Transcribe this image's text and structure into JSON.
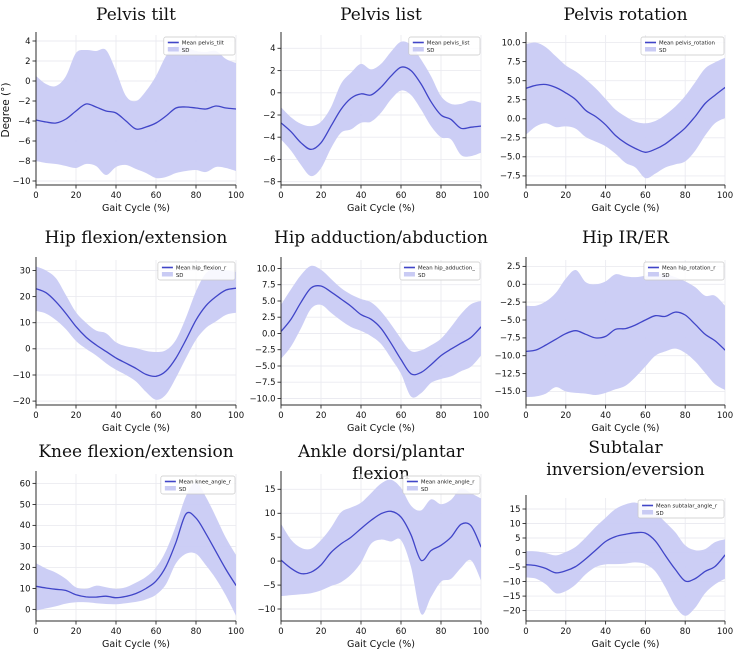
{
  "figure": {
    "background": "#ffffff",
    "line_color": "#4045c8",
    "band_color": "#c9cbf4",
    "grid_color": "#ebebf1",
    "axis_color": "#2b2b2b",
    "legend_sd_label": "SD"
  },
  "chart_data": [
    {
      "type": "line",
      "title_lines": [
        "Pelvis  tilt"
      ],
      "legend": [
        "Mean pelvis_tilt",
        "SD"
      ],
      "xlabel": "Gait Cycle (%)",
      "ylabel": "Degree (°)",
      "grid": true,
      "legend_position": "upper right",
      "x": [
        0,
        5,
        10,
        15,
        20,
        25,
        30,
        35,
        40,
        45,
        50,
        55,
        60,
        65,
        70,
        75,
        80,
        85,
        90,
        95,
        100
      ],
      "mean": [
        -3.9,
        -4.1,
        -4.2,
        -3.8,
        -3.0,
        -2.3,
        -2.6,
        -3.0,
        -3.2,
        -4.0,
        -4.8,
        -4.6,
        -4.2,
        -3.5,
        -2.7,
        -2.6,
        -2.7,
        -2.8,
        -2.5,
        -2.7,
        -2.8
      ],
      "sd_upper": [
        0.5,
        -0.3,
        -0.5,
        0.5,
        2.8,
        3.1,
        3.0,
        3.1,
        1.0,
        -1.5,
        -2.0,
        -1.0,
        0.5,
        2.5,
        3.6,
        3.4,
        3.0,
        2.9,
        3.0,
        2.2,
        1.8
      ],
      "sd_lower": [
        -8.0,
        -8.2,
        -8.3,
        -8.5,
        -8.7,
        -8.3,
        -8.5,
        -9.4,
        -8.6,
        -8.4,
        -8.8,
        -9.2,
        -9.7,
        -9.6,
        -9.2,
        -9.0,
        -8.9,
        -9.1,
        -8.6,
        -8.7,
        -9.0
      ],
      "ylim": [
        -10.4,
        4.6
      ],
      "yticks": [
        4,
        2,
        0,
        -2,
        -4,
        -6,
        -8,
        -10
      ],
      "ytick_labels": [
        "4",
        "2",
        "0",
        "−2",
        "−4",
        "−6",
        "−8",
        "−10"
      ],
      "xticks": [
        0,
        20,
        40,
        60,
        80,
        100
      ],
      "xtick_labels": [
        "0",
        "20",
        "40",
        "60",
        "80",
        "100"
      ]
    },
    {
      "type": "line",
      "title_lines": [
        "Pelvis list"
      ],
      "legend": [
        "Mean pelvis_list",
        "SD"
      ],
      "xlabel": "Gait Cycle (%)",
      "ylabel": "",
      "grid": true,
      "legend_position": "upper right",
      "x": [
        0,
        5,
        10,
        15,
        20,
        25,
        30,
        35,
        40,
        45,
        50,
        55,
        60,
        65,
        70,
        75,
        80,
        85,
        90,
        95,
        100
      ],
      "mean": [
        -2.7,
        -3.5,
        -4.5,
        -5.1,
        -4.5,
        -3.0,
        -1.5,
        -0.5,
        -0.1,
        -0.2,
        0.5,
        1.5,
        2.3,
        2.0,
        0.8,
        -0.8,
        -2.0,
        -2.4,
        -3.2,
        -3.1,
        -3.0
      ],
      "sd_upper": [
        -1.3,
        -2.2,
        -2.8,
        -3.0,
        -2.6,
        -1.3,
        0.8,
        1.8,
        2.6,
        2.1,
        2.6,
        3.7,
        4.6,
        4.3,
        3.0,
        1.5,
        -0.3,
        -1.0,
        -1.0,
        -0.7,
        -0.9
      ],
      "sd_lower": [
        -4.2,
        -5.2,
        -6.5,
        -7.5,
        -6.8,
        -5.0,
        -3.6,
        -3.3,
        -2.7,
        -2.6,
        -1.8,
        -0.6,
        0.2,
        -0.2,
        -1.5,
        -3.0,
        -4.0,
        -4.2,
        -5.6,
        -5.7,
        -5.4
      ],
      "ylim": [
        -8.3,
        5.2
      ],
      "yticks": [
        4,
        2,
        0,
        -2,
        -4,
        -6,
        -8
      ],
      "ytick_labels": [
        "4",
        "2",
        "0",
        "−2",
        "−4",
        "−6",
        "−8"
      ],
      "xticks": [
        0,
        20,
        40,
        60,
        80,
        100
      ],
      "xtick_labels": [
        "0",
        "20",
        "40",
        "60",
        "80",
        "100"
      ]
    },
    {
      "type": "line",
      "title_lines": [
        "Pelvis rotation"
      ],
      "legend": [
        "Mean pelvis_rotation",
        "SD"
      ],
      "xlabel": "Gait Cycle (%)",
      "ylabel": "",
      "grid": true,
      "legend_position": "upper right",
      "x": [
        0,
        5,
        10,
        15,
        20,
        25,
        30,
        35,
        40,
        45,
        50,
        55,
        60,
        65,
        70,
        75,
        80,
        85,
        90,
        95,
        100
      ],
      "mean": [
        4.0,
        4.4,
        4.5,
        4.1,
        3.4,
        2.5,
        1.1,
        0.3,
        -0.8,
        -2.2,
        -3.2,
        -3.9,
        -4.4,
        -4.0,
        -3.3,
        -2.3,
        -1.2,
        0.3,
        2.0,
        3.1,
        4.1
      ],
      "sd_upper": [
        9.8,
        10.0,
        9.4,
        8.2,
        7.0,
        6.2,
        5.2,
        4.0,
        2.6,
        1.2,
        0.3,
        -0.4,
        -0.6,
        -0.3,
        0.5,
        1.6,
        3.0,
        4.8,
        6.6,
        7.4,
        8.0
      ],
      "sd_lower": [
        -2.1,
        -1.0,
        -0.6,
        -1.1,
        -1.0,
        -1.3,
        -2.4,
        -3.0,
        -3.6,
        -4.6,
        -5.8,
        -6.4,
        -7.8,
        -7.2,
        -6.4,
        -6.0,
        -5.6,
        -4.2,
        -2.2,
        -0.6,
        0.1
      ],
      "ylim": [
        -8.7,
        11.0
      ],
      "yticks": [
        10,
        7.5,
        5,
        2.5,
        0,
        -2.5,
        -5,
        -7.5
      ],
      "ytick_labels": [
        "10.0",
        "7.5",
        "5.0",
        "2.5",
        "0.0",
        "−2.5",
        "−5.0",
        "−7.5"
      ],
      "xticks": [
        0,
        20,
        40,
        60,
        80,
        100
      ],
      "xtick_labels": [
        "0",
        "20",
        "40",
        "60",
        "80",
        "100"
      ]
    },
    {
      "type": "line",
      "title_lines": [
        "Hip flexion/extension"
      ],
      "legend": [
        "Mean hip_flexion_r",
        "SD"
      ],
      "xlabel": "Gait Cycle (%)",
      "ylabel": "",
      "grid": true,
      "legend_position": "upper right",
      "x": [
        0,
        5,
        10,
        15,
        20,
        25,
        30,
        35,
        40,
        45,
        50,
        55,
        60,
        65,
        70,
        75,
        80,
        85,
        90,
        95,
        100
      ],
      "mean": [
        23,
        21.5,
        18,
        13.5,
        8.5,
        4.5,
        1.5,
        -1,
        -3.5,
        -5.5,
        -7.5,
        -9.8,
        -10.5,
        -8.5,
        -3.5,
        3.5,
        11,
        16.5,
        20,
        22.5,
        23.2
      ],
      "sd_upper": [
        31.5,
        30,
        27,
        20.5,
        14,
        10,
        7,
        6,
        2.5,
        1.0,
        0.3,
        -0.8,
        -1.2,
        -0.5,
        3.5,
        12,
        22,
        29,
        30.5,
        30,
        29.5
      ],
      "sd_lower": [
        14.5,
        13.5,
        11,
        7.5,
        3,
        0,
        -2.5,
        -5.5,
        -8,
        -10,
        -12.5,
        -16.5,
        -19.5,
        -17.5,
        -11,
        -3.5,
        3.5,
        8,
        10.5,
        13,
        13.8
      ],
      "ylim": [
        -21.5,
        34
      ],
      "yticks": [
        30,
        20,
        10,
        0,
        -10,
        -20
      ],
      "ytick_labels": [
        "30",
        "20",
        "10",
        "0",
        "−10",
        "−20"
      ],
      "xticks": [
        0,
        20,
        40,
        60,
        80,
        100
      ],
      "xtick_labels": [
        "0",
        "20",
        "40",
        "60",
        "80",
        "100"
      ]
    },
    {
      "type": "line",
      "title_lines": [
        "Hip adduction/abduction"
      ],
      "legend": [
        "Mean hip_adduction_",
        "SD"
      ],
      "xlabel": "Gait Cycle (%)",
      "ylabel": "",
      "grid": true,
      "legend_position": "upper right",
      "x": [
        0,
        5,
        10,
        15,
        20,
        25,
        30,
        35,
        40,
        45,
        50,
        55,
        60,
        65,
        70,
        75,
        80,
        85,
        90,
        95,
        100
      ],
      "mean": [
        0.3,
        2.2,
        4.8,
        7.0,
        7.3,
        6.4,
        5.3,
        4.2,
        2.9,
        2.2,
        0.8,
        -1.5,
        -4.0,
        -6.2,
        -6.0,
        -4.8,
        -3.4,
        -2.4,
        -1.5,
        -0.6,
        1.0
      ],
      "sd_upper": [
        4.4,
        6.8,
        9.0,
        10.4,
        9.8,
        8.4,
        7.0,
        6.0,
        5.3,
        4.8,
        3.4,
        1.4,
        -0.8,
        -2.7,
        -2.6,
        -1.8,
        -0.8,
        1.0,
        3.0,
        4.5,
        5.0
      ],
      "sd_lower": [
        -3.9,
        -2.0,
        0.8,
        3.8,
        4.4,
        3.2,
        2.0,
        1.0,
        0.4,
        -0.4,
        -1.6,
        -3.8,
        -6.2,
        -9.7,
        -9.2,
        -7.6,
        -7.0,
        -6.6,
        -5.8,
        -5.1,
        -3.4
      ],
      "ylim": [
        -11.0,
        11.3
      ],
      "yticks": [
        10,
        7.5,
        5,
        2.5,
        0,
        -2.5,
        -5,
        -7.5,
        -10
      ],
      "ytick_labels": [
        "10.0",
        "7.5",
        "5.0",
        "2.5",
        "0.0",
        "−2.5",
        "−5.0",
        "−7.5",
        "−10.0"
      ],
      "xticks": [
        0,
        20,
        40,
        60,
        80,
        100
      ],
      "xtick_labels": [
        "0",
        "20",
        "40",
        "60",
        "80",
        "100"
      ]
    },
    {
      "type": "line",
      "title_lines": [
        "Hip IR/ER"
      ],
      "legend": [
        "Mean hip_rotation_r",
        "SD"
      ],
      "xlabel": "Gait Cycle (%)",
      "ylabel": "",
      "grid": true,
      "legend_position": "upper right",
      "x": [
        0,
        5,
        10,
        15,
        20,
        25,
        30,
        35,
        40,
        45,
        50,
        55,
        60,
        65,
        70,
        75,
        80,
        85,
        90,
        95,
        100
      ],
      "mean": [
        -9.4,
        -9.2,
        -8.5,
        -7.7,
        -6.9,
        -6.5,
        -7.0,
        -7.5,
        -7.3,
        -6.3,
        -6.2,
        -5.7,
        -5.0,
        -4.4,
        -4.5,
        -3.9,
        -4.3,
        -5.6,
        -7.0,
        -7.9,
        -9.2
      ],
      "sd_upper": [
        -3.0,
        -3.0,
        -2.4,
        -1.2,
        0.8,
        2.0,
        0.3,
        0.0,
        0.4,
        1.4,
        1.1,
        1.0,
        1.2,
        1.4,
        1.4,
        1.0,
        0.4,
        -0.4,
        -1.6,
        -1.6,
        -3.0
      ],
      "sd_lower": [
        -15.8,
        -15.7,
        -15.3,
        -14.4,
        -15.0,
        -15.2,
        -15.3,
        -15.5,
        -15.2,
        -14.7,
        -14.2,
        -13.0,
        -11.5,
        -10.0,
        -9.4,
        -9.0,
        -9.6,
        -10.8,
        -12.4,
        -14.0,
        -14.8
      ],
      "ylim": [
        -16.9,
        3.4
      ],
      "yticks": [
        2.5,
        0,
        -2.5,
        -5,
        -7.5,
        -10,
        -12.5,
        -15
      ],
      "ytick_labels": [
        "2.5",
        "0.0",
        "−2.5",
        "−5.0",
        "−7.5",
        "−10.0",
        "−12.5",
        "−15.0"
      ],
      "xticks": [
        0,
        20,
        40,
        60,
        80,
        100
      ],
      "xtick_labels": [
        "0",
        "20",
        "40",
        "60",
        "80",
        "100"
      ]
    },
    {
      "type": "line",
      "title_lines": [
        "Knee flexion/extension"
      ],
      "legend": [
        "Mean knee_angle_r",
        "SD"
      ],
      "xlabel": "Gait Cycle (%)",
      "ylabel": "",
      "grid": true,
      "legend_position": "upper right",
      "x": [
        0,
        5,
        10,
        15,
        20,
        25,
        30,
        35,
        40,
        45,
        50,
        55,
        60,
        65,
        70,
        75,
        80,
        85,
        90,
        95,
        100
      ],
      "mean": [
        11,
        10.2,
        9.6,
        9.0,
        7.0,
        6.0,
        5.9,
        6.3,
        5.6,
        6.2,
        7.6,
        10.0,
        13.5,
        20.5,
        32,
        45.5,
        43.5,
        36,
        27.5,
        19,
        11.5
      ],
      "sd_upper": [
        22,
        19.5,
        17.5,
        14.5,
        10.5,
        9.8,
        11.3,
        10.6,
        9.8,
        10.6,
        12.8,
        15.5,
        20,
        28,
        40,
        54,
        60.5,
        53.5,
        44,
        34,
        26
      ],
      "sd_lower": [
        -0.5,
        0.5,
        1.5,
        2.8,
        3.4,
        3.4,
        3.0,
        2.6,
        2.5,
        3.0,
        3.6,
        4.8,
        7.0,
        12,
        22,
        26.5,
        26.5,
        21,
        14.5,
        6.5,
        -3
      ],
      "ylim": [
        -5.5,
        64.5
      ],
      "yticks": [
        60,
        50,
        40,
        30,
        20,
        10,
        0
      ],
      "ytick_labels": [
        "60",
        "50",
        "40",
        "30",
        "20",
        "10",
        "0"
      ],
      "xticks": [
        0,
        20,
        40,
        60,
        80,
        100
      ],
      "xtick_labels": [
        "0",
        "20",
        "40",
        "60",
        "80",
        "100"
      ]
    },
    {
      "type": "line",
      "title_lines": [
        "Ankle dorsi/plantar flexion"
      ],
      "legend": [
        "Mean ankle_angle_r",
        "SD"
      ],
      "xlabel": "Gait Cycle (%)",
      "ylabel": "",
      "grid": true,
      "legend_position": "upper right",
      "x": [
        0,
        5,
        10,
        15,
        20,
        25,
        30,
        35,
        40,
        45,
        50,
        55,
        60,
        65,
        70,
        75,
        80,
        85,
        90,
        95,
        100
      ],
      "mean": [
        0.2,
        -1.5,
        -2.6,
        -2.3,
        -0.8,
        1.8,
        3.6,
        5.0,
        6.8,
        8.5,
        9.9,
        10.4,
        9.2,
        5.5,
        0.2,
        2.2,
        3.3,
        5.0,
        7.7,
        7.4,
        3.0
      ],
      "sd_upper": [
        7.8,
        4.5,
        2.8,
        2.6,
        4.4,
        7.0,
        10.2,
        11.2,
        12.2,
        14.2,
        16.2,
        17.0,
        15.3,
        11.6,
        10.6,
        12.9,
        11.9,
        12.8,
        15.2,
        14.2,
        13.1
      ],
      "sd_lower": [
        -7.3,
        -7.1,
        -6.9,
        -6.7,
        -6.1,
        -5.2,
        -4.4,
        -2.8,
        -0.3,
        3.6,
        4.5,
        4.1,
        4.4,
        -1.2,
        -11.0,
        -7.5,
        -4.3,
        -3.7,
        -1.4,
        0.2,
        -4.0
      ],
      "ylim": [
        -12.5,
        18.2
      ],
      "yticks": [
        15,
        10,
        5,
        0,
        -5,
        -10
      ],
      "ytick_labels": [
        "15",
        "10",
        "5",
        "0",
        "−5",
        "−10"
      ],
      "xticks": [
        0,
        20,
        40,
        60,
        80,
        100
      ],
      "xtick_labels": [
        "0",
        "20",
        "40",
        "60",
        "80",
        "100"
      ]
    },
    {
      "type": "line",
      "title_lines": [
        "Subtalar",
        "inversion/eversion"
      ],
      "legend": [
        "Mean subtalar_angle_r",
        "SD"
      ],
      "xlabel": "Gait Cycle (%)",
      "ylabel": "",
      "grid": true,
      "legend_position": "upper right",
      "x": [
        0,
        5,
        10,
        15,
        20,
        25,
        30,
        35,
        40,
        45,
        50,
        55,
        60,
        65,
        70,
        75,
        80,
        85,
        90,
        95,
        100
      ],
      "mean": [
        -4.2,
        -4.5,
        -5.5,
        -7.0,
        -6.3,
        -4.8,
        -2.2,
        0.8,
        3.8,
        5.5,
        6.3,
        6.8,
        6.7,
        4.0,
        -1.0,
        -5.8,
        -9.8,
        -9.0,
        -6.5,
        -4.8,
        -0.9
      ],
      "sd_upper": [
        0.5,
        0.4,
        -0.2,
        -1.0,
        0.2,
        2.0,
        5.2,
        8.8,
        12.0,
        15.0,
        16.6,
        17.2,
        15.8,
        13.8,
        10.5,
        7.0,
        2.5,
        0.8,
        1.2,
        3.6,
        4.6
      ],
      "sd_lower": [
        -8.6,
        -9.0,
        -11.0,
        -14.0,
        -13.3,
        -11.0,
        -7.5,
        -5.0,
        -4.1,
        -4.0,
        -3.8,
        -3.4,
        -4.0,
        -6.5,
        -12.0,
        -18.5,
        -21.8,
        -19.0,
        -14.0,
        -11.0,
        -9.0
      ],
      "ylim": [
        -23.6,
        18.8
      ],
      "yticks": [
        15,
        10,
        5,
        0,
        -5,
        -10,
        -15,
        -20
      ],
      "ytick_labels": [
        "15",
        "10",
        "5",
        "0",
        "−5",
        "−10",
        "−15",
        "−20"
      ],
      "xticks": [
        0,
        20,
        40,
        60,
        80,
        100
      ],
      "xtick_labels": [
        "0",
        "20",
        "40",
        "60",
        "80",
        "100"
      ]
    }
  ]
}
